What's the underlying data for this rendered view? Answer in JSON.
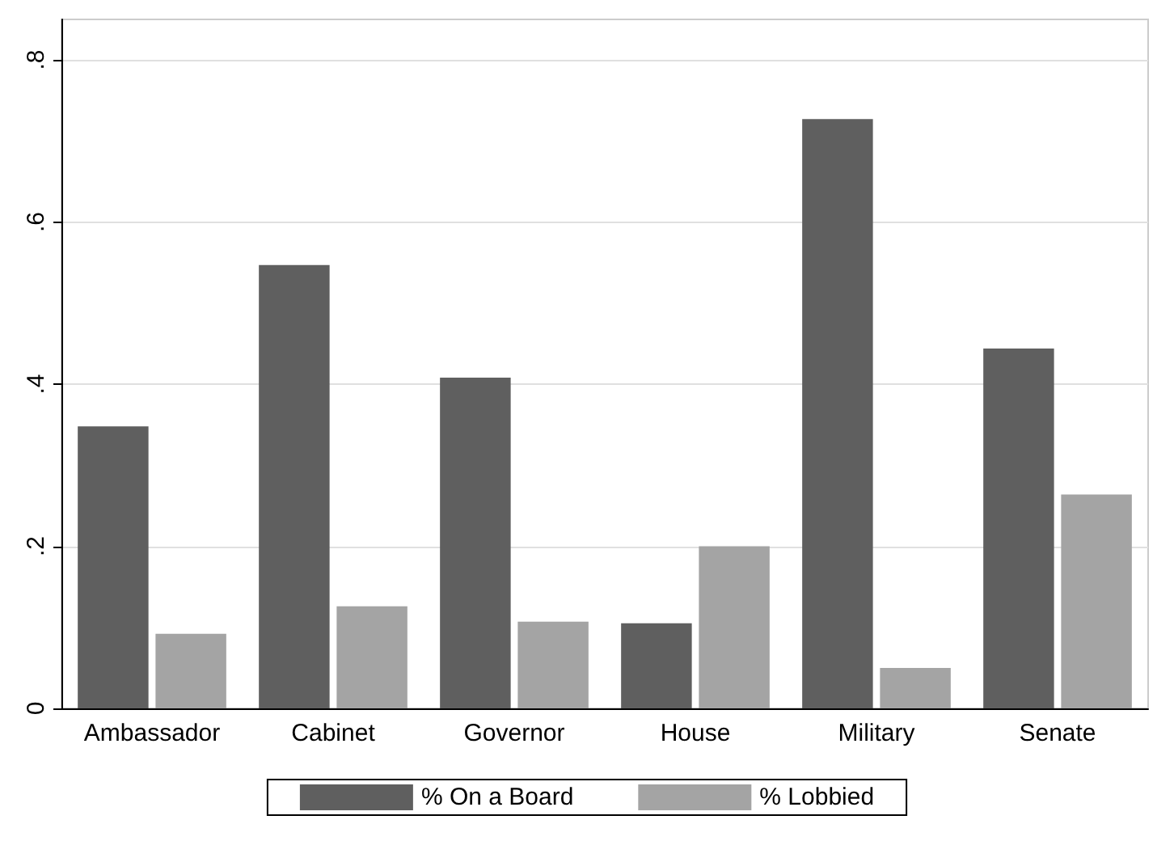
{
  "chart_data": {
    "type": "bar",
    "categories": [
      "Ambassador",
      "Cabinet",
      "Governor",
      "House",
      "Military",
      "Senate"
    ],
    "series": [
      {
        "name": "% On a Board",
        "color": "#5f5f5f",
        "values": [
          0.348,
          0.547,
          0.408,
          0.105,
          0.727,
          0.444
        ]
      },
      {
        "name": "% Lobbied",
        "color": "#a4a4a4",
        "values": [
          0.092,
          0.126,
          0.107,
          0.2,
          0.05,
          0.264
        ]
      }
    ],
    "ylim": [
      0,
      0.85
    ],
    "yticks": [
      0,
      {
        "value": 0.2,
        "label": ".2"
      },
      {
        "value": 0.4,
        "label": ".4"
      },
      {
        "value": 0.6,
        "label": ".6"
      },
      {
        "value": 0.8,
        "label": ".8"
      }
    ],
    "grid": "y",
    "legend": "bottom"
  }
}
